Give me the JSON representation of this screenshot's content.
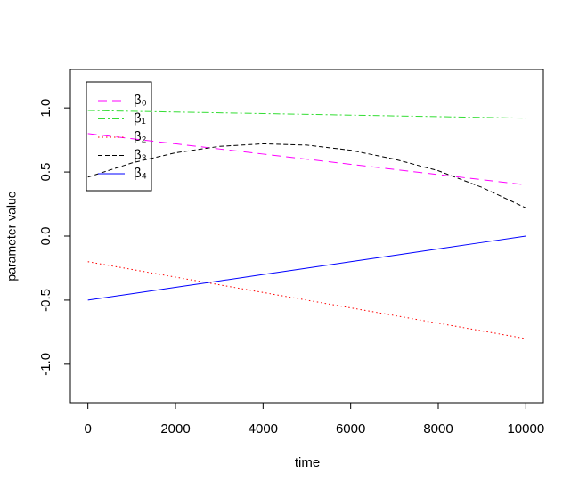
{
  "chart_data": {
    "type": "line",
    "x_label": "time",
    "y_label": "parameter value",
    "x": [
      0,
      1000,
      2000,
      3000,
      4000,
      5000,
      6000,
      7000,
      8000,
      9000,
      10000
    ],
    "series": [
      {
        "name": "β₀",
        "color": "#ff00ff",
        "dash": "10 6",
        "values": [
          0.8,
          0.76,
          0.72,
          0.68,
          0.64,
          0.6,
          0.56,
          0.52,
          0.48,
          0.44,
          0.4
        ]
      },
      {
        "name": "β₁",
        "color": "#33dd33",
        "dash": "8 3 2 3",
        "values": [
          0.98,
          0.974,
          0.968,
          0.962,
          0.956,
          0.95,
          0.944,
          0.938,
          0.932,
          0.926,
          0.92
        ]
      },
      {
        "name": "β₂",
        "color": "#ff0000",
        "dash": "1.5 3",
        "values": [
          -0.2,
          -0.26,
          -0.32,
          -0.38,
          -0.44,
          -0.5,
          -0.56,
          -0.62,
          -0.68,
          -0.74,
          -0.8
        ]
      },
      {
        "name": "β₃",
        "color": "#000000",
        "dash": "5 3",
        "values": [
          0.46,
          0.57,
          0.65,
          0.7,
          0.72,
          0.71,
          0.67,
          0.6,
          0.51,
          0.38,
          0.22
        ]
      },
      {
        "name": "β₄",
        "color": "#0000ff",
        "dash": "",
        "values": [
          -0.5,
          -0.45,
          -0.4,
          -0.35,
          -0.3,
          -0.25,
          -0.2,
          -0.15,
          -0.1,
          -0.05,
          0
        ]
      }
    ],
    "xlim": [
      -400,
      10400
    ],
    "ylim": [
      -1.3,
      1.3
    ],
    "xticks": [
      0,
      2000,
      4000,
      6000,
      8000,
      10000
    ],
    "yticks": [
      {
        "value": -1,
        "label": "-1.0"
      },
      -0.5,
      {
        "value": 0,
        "label": "0.0"
      },
      0.5,
      {
        "value": 1,
        "label": "1.0"
      }
    ],
    "grid": false,
    "legend": "topleft"
  }
}
